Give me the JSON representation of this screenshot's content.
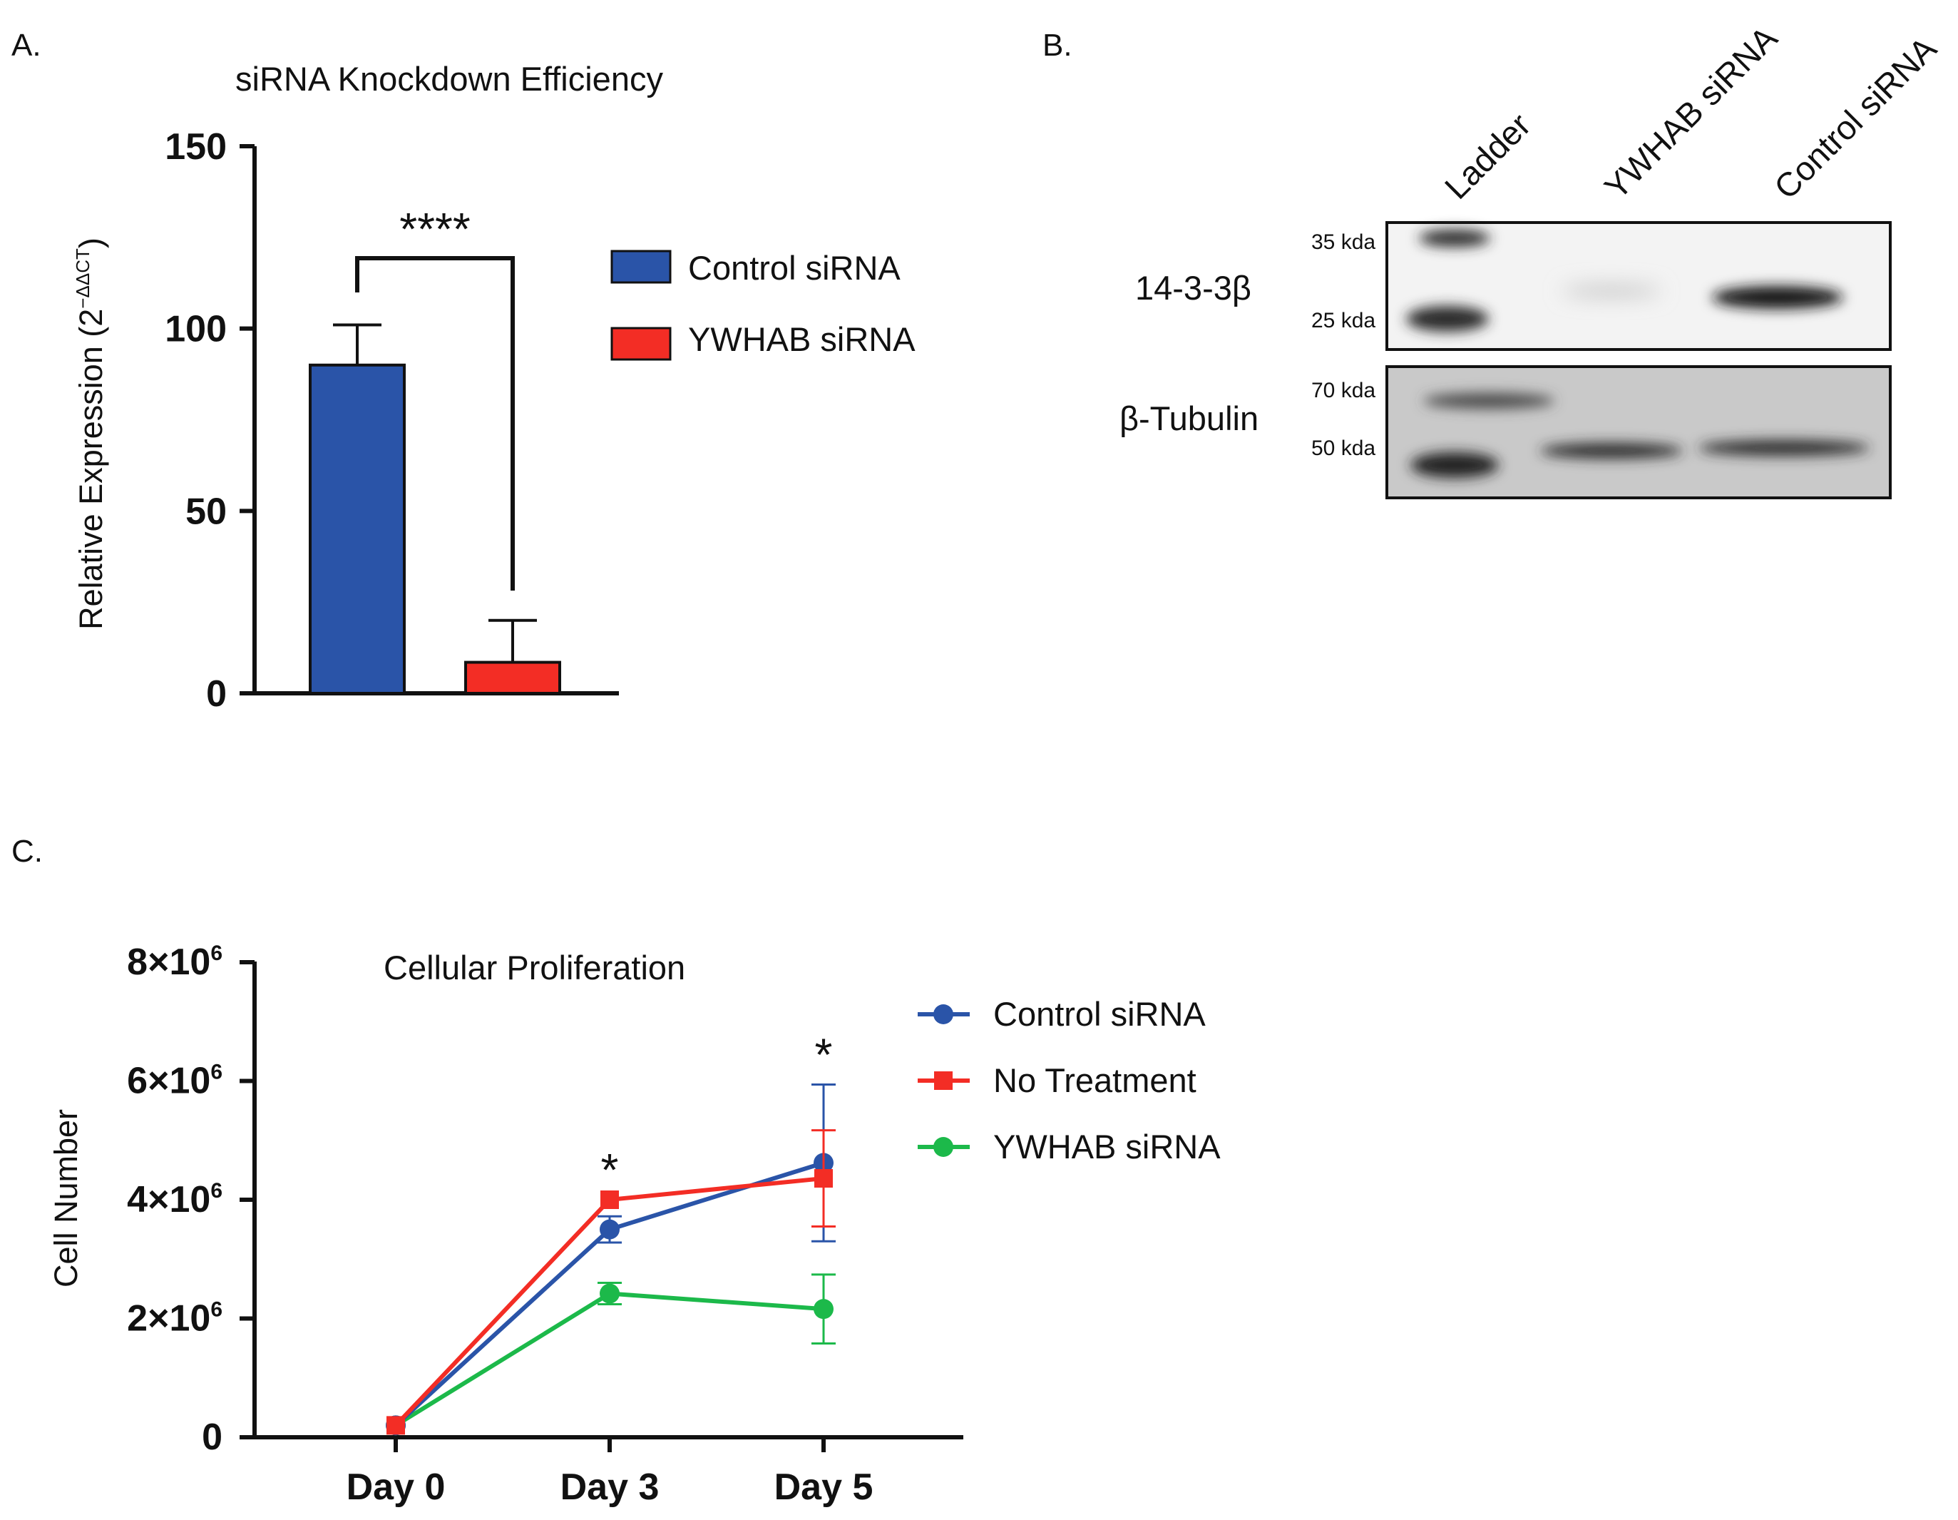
{
  "figure": {
    "panels": [
      "A.",
      "B.",
      "C."
    ]
  },
  "chart_data": [
    {
      "panel": "A.",
      "type": "bar",
      "title": "siRNA Knockdown Efficiency",
      "ylabel": "Relative Expression (2⁻ΔΔCT)",
      "ylabel_main": "Relative Expression (2",
      "ylabel_exp": "−ΔΔCT",
      "ylabel_close": ")",
      "xlabel": "",
      "ylim": [
        0,
        150
      ],
      "yticks": [
        "0",
        "50",
        "100",
        "150"
      ],
      "categories": [
        "Control siRNA",
        "YWHAB siRNA"
      ],
      "values": [
        90,
        8.5
      ],
      "errors": [
        11,
        11.5
      ],
      "colors": [
        "#2a54a8",
        "#f32d25"
      ],
      "significance": "****",
      "legend": [
        {
          "label": "Control siRNA",
          "color": "#2a54a8"
        },
        {
          "label": "YWHAB siRNA",
          "color": "#f32d25"
        }
      ],
      "legend_position": "right"
    },
    {
      "panel": "C.",
      "type": "line",
      "title": "Cellular Proliferation",
      "ylabel": "Cell Number",
      "xlabel": "",
      "x": [
        "Day  0",
        "Day 3",
        "Day 5"
      ],
      "ylim": [
        0,
        8000000
      ],
      "yticks": [
        {
          "base": "0",
          "exp": ""
        },
        {
          "base": "2×10",
          "exp": "6"
        },
        {
          "base": "4×10",
          "exp": "6"
        },
        {
          "base": "6×10",
          "exp": "6"
        },
        {
          "base": "8×10",
          "exp": "6"
        }
      ],
      "series": [
        {
          "name": "Control siRNA",
          "color": "#2a54a8",
          "marker": "circle",
          "values": [
            200000,
            3500000,
            4620000
          ],
          "errors": [
            0,
            220000,
            1320000
          ]
        },
        {
          "name": "No Treatment",
          "color": "#f32d25",
          "marker": "square",
          "values": [
            200000,
            4000000,
            4360000
          ],
          "errors": [
            0,
            0,
            810000
          ]
        },
        {
          "name": "YWHAB siRNA",
          "color": "#1cb94a",
          "marker": "circle",
          "values": [
            200000,
            2420000,
            2160000
          ],
          "errors": [
            0,
            180000,
            580000
          ]
        }
      ],
      "annotations": [
        {
          "x": "Day 3",
          "text": "*"
        },
        {
          "x": "Day 5",
          "text": "*"
        }
      ],
      "legend_position": "right"
    }
  ],
  "western_blot": {
    "lanes": [
      "Ladder",
      "YWHAB siRNA",
      "Control siRNA"
    ],
    "blots": [
      {
        "protein": "14-3-3β",
        "markers": [
          "35 kda",
          "25 kda"
        ]
      },
      {
        "protein": "β-Tubulin",
        "markers": [
          "70 kda",
          "50 kda"
        ]
      }
    ]
  }
}
